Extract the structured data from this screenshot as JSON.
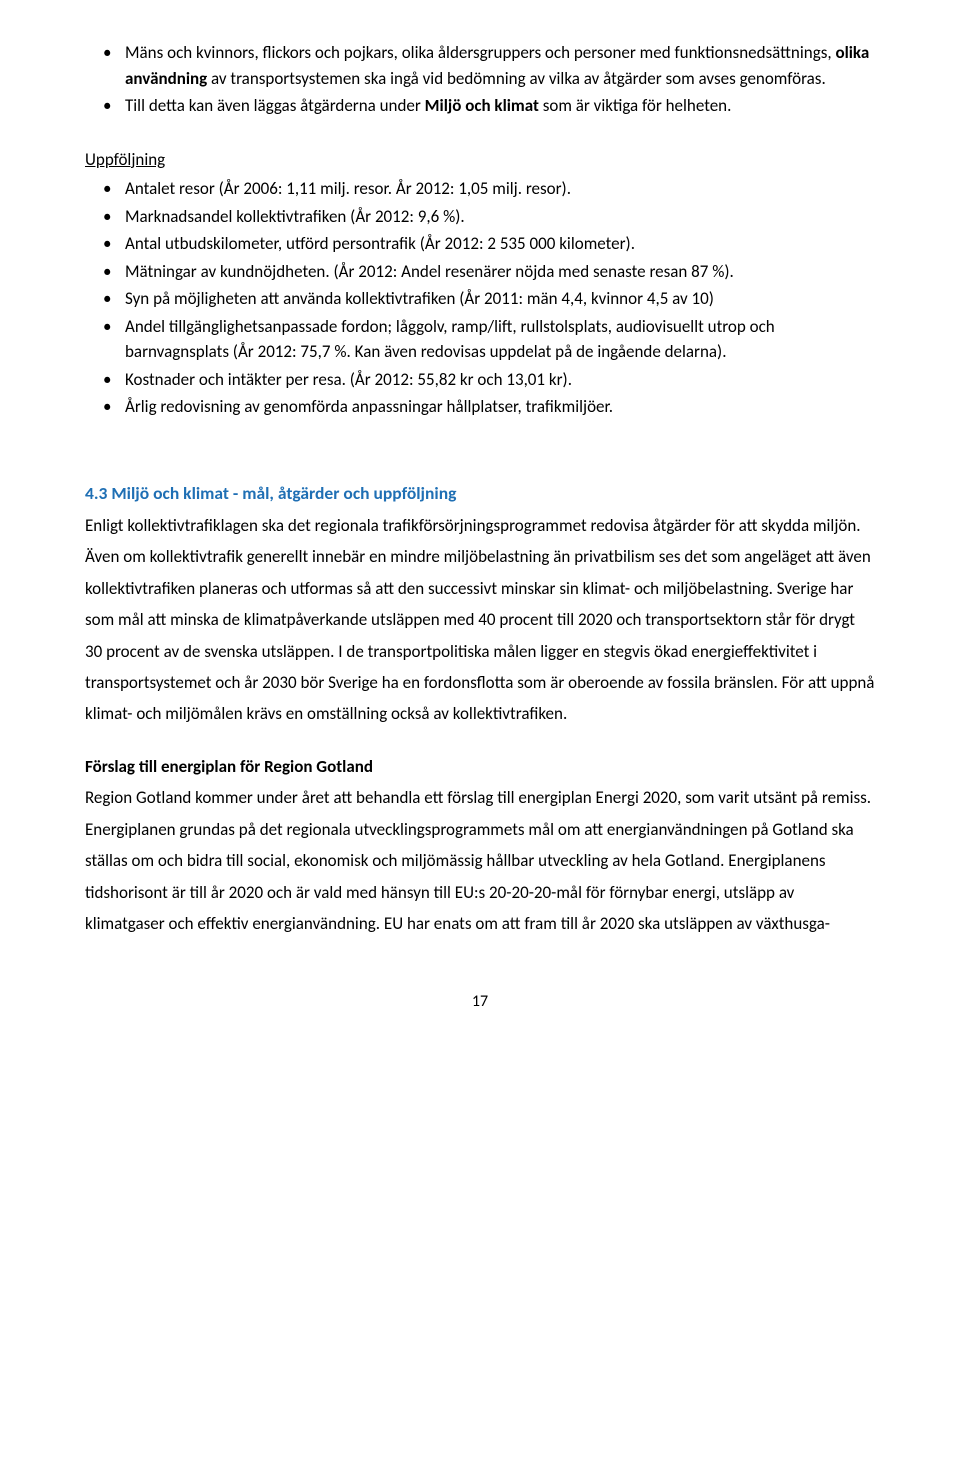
{
  "top_list": {
    "items": [
      {
        "prefix": "Mäns och kvinnors, flickors och pojkars, olika åldersgruppers och personer med funktionsnedsättnings, ",
        "bold": "olika användning",
        "suffix": " av transportsystemen ska ingå vid bedömning av vilka av åtgärder som avses genomföras."
      },
      {
        "prefix": "Till detta kan även läggas åtgärderna under ",
        "bold": "Miljö och klimat",
        "suffix": " som är viktiga för helheten."
      }
    ]
  },
  "uppfoljning": {
    "heading": "Uppföljning",
    "items": [
      "Antalet resor (År 2006: 1,11 milj. resor. År 2012: 1,05 milj. resor).",
      "Marknadsandel kollektivtrafiken (År 2012: 9,6 %).",
      "Antal utbudskilometer, utförd persontrafik (År 2012: 2 535 000 kilometer).",
      "Mätningar av kundnöjdheten. (År 2012: Andel resenärer nöjda med senaste resan 87 %).",
      "Syn på möjligheten att använda kollektivtrafiken (År 2011: män 4,4, kvinnor 4,5 av 10)",
      "Andel tillgänglighetsanpassade fordon; låggolv, ramp/lift, rullstolsplats, audiovisuellt utrop och barnvagnsplats (År 2012: 75,7 %. Kan även redovisas uppdelat på de ingående delarna).",
      "Kostnader och intäkter per resa. (År 2012: 55,82 kr och 13,01 kr).",
      "Årlig redovisning av genomförda anpassningar hållplatser, trafikmiljöer."
    ]
  },
  "section_43": {
    "heading": "4.3 Miljö och klimat - mål, åtgärder och uppföljning",
    "paragraph": "Enligt kollektivtrafiklagen ska det regionala trafikförsörjningsprogrammet redovisa åtgärder för att skydda miljön. Även om kollektivtrafik generellt innebär en mindre miljöbelastning än privatbilism ses det som angeläget att även kollektivtrafiken planeras och utformas så att den successivt minskar sin klimat- och miljöbelastning. Sverige har som mål att minska de klimatpåverkande utsläppen med 40 procent till 2020 och transportsektorn står för drygt 30 procent av de svenska utsläppen. I de transportpolitiska målen ligger en stegvis ökad energieffektivitet i transportsystemet och år 2030 bör Sverige ha en fordonsflotta som är oberoende av fossila bränslen. För att uppnå klimat- och miljömålen krävs en omställning också av kollektivtrafiken."
  },
  "forslag": {
    "heading": "Förslag till energiplan för Region Gotland",
    "paragraph": "Region Gotland kommer under året att behandla ett förslag till energiplan Energi 2020, som varit utsänt på remiss. Energiplanen grundas på det regionala utvecklingsprogrammets mål om att energianvändningen på Gotland ska ställas om och bidra till social, ekonomisk och miljömässig hållbar utveckling av hela Gotland. Energiplanens tidshorisont är till år 2020 och är vald med hänsyn till EU:s 20-20-20-mål för förnybar energi, utsläpp av klimatgaser och effektiv energianvändning. EU har enats om att fram till år 2020 ska utsläppen av växthusga-"
  },
  "page_number": "17"
}
